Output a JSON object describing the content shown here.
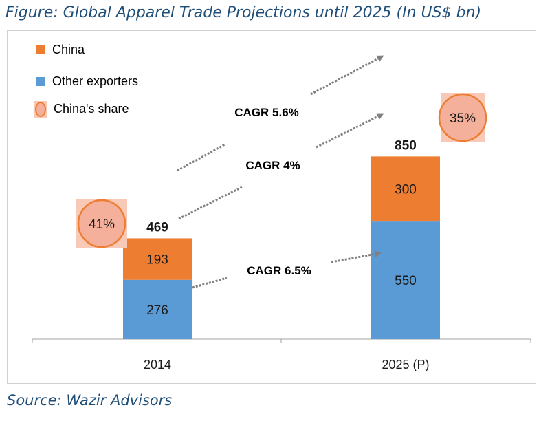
{
  "title": "Figure: Global Apparel Trade Projections until 2025 (In US$ bn)",
  "source": "Source: Wazir Advisors",
  "colors": {
    "china": "#ed7d31",
    "other": "#5b9bd5",
    "share_fill": "#f4b09a",
    "share_bg": "#f8c9b6",
    "arrow": "#808080",
    "axis": "#808080",
    "title": "#1f4e79"
  },
  "chart_data": {
    "type": "bar",
    "stacked": true,
    "categories": [
      "2014",
      "2025 (P)"
    ],
    "series": [
      {
        "name": "Other exporters",
        "values": [
          276,
          550
        ]
      },
      {
        "name": "China",
        "values": [
          193,
          300
        ]
      }
    ],
    "totals": [
      469,
      850
    ],
    "share_series_name": "China's share",
    "shares": [
      "41%",
      "35%"
    ],
    "ylim": [
      0,
      900
    ],
    "legend": {
      "position": "top-left",
      "entries": [
        "China",
        "Other exporters",
        "China's share"
      ]
    },
    "annotations": [
      "CAGR 5.6%",
      "CAGR 4%",
      "CAGR 6.5%"
    ],
    "grid": false,
    "xlabel": "",
    "ylabel": ""
  }
}
